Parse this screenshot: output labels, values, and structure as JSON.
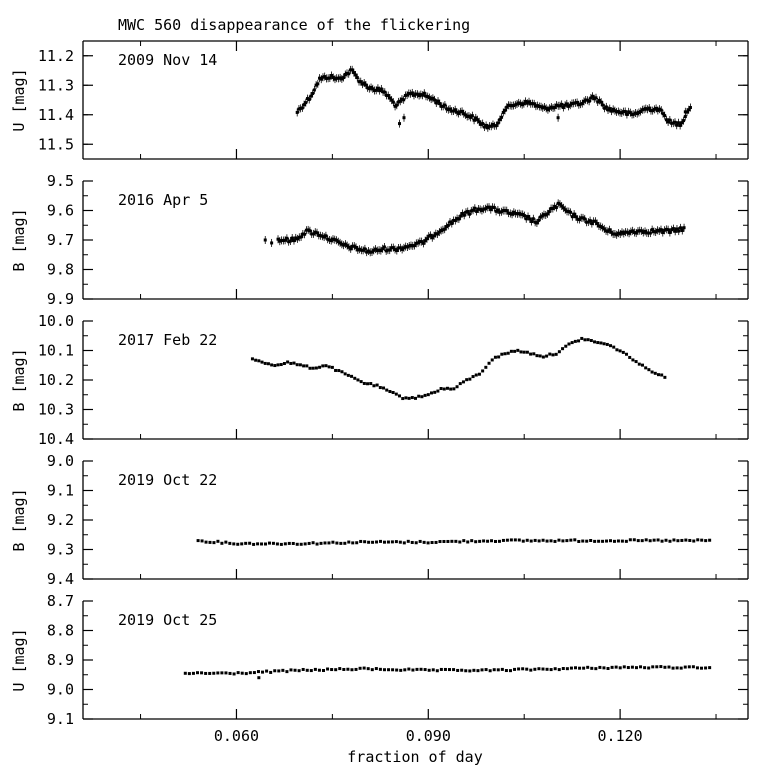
{
  "chart_data": {
    "type": "scatter",
    "title": "MWC 560   disappearance of the flickering",
    "xlabel": "fraction of day",
    "xlim": [
      0.036,
      0.14
    ],
    "x_ticks": [
      0.06,
      0.09,
      0.12
    ],
    "x_tick_labels": [
      "0.060",
      "0.090",
      "0.120"
    ],
    "y_inverted": true,
    "panels": [
      {
        "label": "2009 Nov 14",
        "ylabel": "U [mag]",
        "ylim": [
          11.15,
          11.55
        ],
        "y_ticks": [
          11.5,
          11.4,
          11.3,
          11.2
        ],
        "y_tick_labels": [
          "11.5",
          "11.4",
          "11.3",
          "11.2"
        ],
        "error_bars": true,
        "anchors": [
          [
            0.0695,
            11.39
          ],
          [
            0.0715,
            11.34
          ],
          [
            0.073,
            11.28
          ],
          [
            0.0745,
            11.27
          ],
          [
            0.076,
            11.28
          ],
          [
            0.078,
            11.25
          ],
          [
            0.0795,
            11.29
          ],
          [
            0.081,
            11.31
          ],
          [
            0.083,
            11.32
          ],
          [
            0.085,
            11.37
          ],
          [
            0.087,
            11.33
          ],
          [
            0.089,
            11.33
          ],
          [
            0.091,
            11.35
          ],
          [
            0.093,
            11.38
          ],
          [
            0.095,
            11.39
          ],
          [
            0.097,
            11.41
          ],
          [
            0.099,
            11.44
          ],
          [
            0.1005,
            11.44
          ],
          [
            0.102,
            11.38
          ],
          [
            0.104,
            11.36
          ],
          [
            0.106,
            11.36
          ],
          [
            0.108,
            11.38
          ],
          [
            0.11,
            11.37
          ],
          [
            0.112,
            11.37
          ],
          [
            0.114,
            11.36
          ],
          [
            0.116,
            11.34
          ],
          [
            0.118,
            11.38
          ],
          [
            0.12,
            11.39
          ],
          [
            0.122,
            11.4
          ],
          [
            0.124,
            11.38
          ],
          [
            0.126,
            11.38
          ],
          [
            0.128,
            11.43
          ],
          [
            0.1295,
            11.43
          ],
          [
            0.131,
            11.37
          ]
        ],
        "outliers": [
          [
            0.0855,
            11.43
          ],
          [
            0.0862,
            11.41
          ],
          [
            0.1103,
            11.41
          ],
          [
            0.1302,
            11.39
          ]
        ]
      },
      {
        "label": "2016 Apr 5",
        "ylabel": "B [mag]",
        "ylim": [
          9.5,
          9.9
        ],
        "y_ticks": [
          9.5,
          9.6,
          9.7,
          9.8,
          9.9
        ],
        "y_tick_labels": [
          "9.5",
          "9.6",
          "9.7",
          "9.8",
          "9.9"
        ],
        "error_bars": true,
        "anchors": [
          [
            0.0665,
            9.7
          ],
          [
            0.069,
            9.7
          ],
          [
            0.071,
            9.67
          ],
          [
            0.073,
            9.68
          ],
          [
            0.075,
            9.7
          ],
          [
            0.077,
            9.72
          ],
          [
            0.079,
            9.73
          ],
          [
            0.081,
            9.74
          ],
          [
            0.083,
            9.73
          ],
          [
            0.085,
            9.73
          ],
          [
            0.087,
            9.72
          ],
          [
            0.089,
            9.71
          ],
          [
            0.091,
            9.68
          ],
          [
            0.093,
            9.65
          ],
          [
            0.095,
            9.62
          ],
          [
            0.097,
            9.6
          ],
          [
            0.099,
            9.59
          ],
          [
            0.101,
            9.6
          ],
          [
            0.103,
            9.61
          ],
          [
            0.105,
            9.62
          ],
          [
            0.107,
            9.64
          ],
          [
            0.109,
            9.6
          ],
          [
            0.1105,
            9.58
          ],
          [
            0.112,
            9.61
          ],
          [
            0.114,
            9.63
          ],
          [
            0.116,
            9.64
          ],
          [
            0.118,
            9.67
          ],
          [
            0.12,
            9.68
          ],
          [
            0.122,
            9.67
          ],
          [
            0.124,
            9.67
          ],
          [
            0.126,
            9.67
          ],
          [
            0.128,
            9.67
          ],
          [
            0.13,
            9.66
          ]
        ],
        "outliers": [
          [
            0.0645,
            9.7
          ],
          [
            0.0655,
            9.71
          ]
        ]
      },
      {
        "label": "2017 Feb 22",
        "ylabel": "B [mag]",
        "ylim": [
          10.0,
          10.4
        ],
        "y_ticks": [
          10.0,
          10.1,
          10.2,
          10.3,
          10.4
        ],
        "y_tick_labels": [
          "10.0",
          "10.1",
          "10.2",
          "10.3",
          "10.4"
        ],
        "error_bars": false,
        "anchors": [
          [
            0.0625,
            10.13
          ],
          [
            0.064,
            10.14
          ],
          [
            0.066,
            10.15
          ],
          [
            0.068,
            10.14
          ],
          [
            0.07,
            10.15
          ],
          [
            0.072,
            10.16
          ],
          [
            0.074,
            10.15
          ],
          [
            0.076,
            10.17
          ],
          [
            0.078,
            10.19
          ],
          [
            0.08,
            10.21
          ],
          [
            0.082,
            10.22
          ],
          [
            0.084,
            10.24
          ],
          [
            0.086,
            10.26
          ],
          [
            0.088,
            10.26
          ],
          [
            0.09,
            10.25
          ],
          [
            0.092,
            10.23
          ],
          [
            0.094,
            10.23
          ],
          [
            0.096,
            10.2
          ],
          [
            0.098,
            10.18
          ],
          [
            0.1,
            10.13
          ],
          [
            0.102,
            10.11
          ],
          [
            0.104,
            10.1
          ],
          [
            0.106,
            10.11
          ],
          [
            0.108,
            10.12
          ],
          [
            0.11,
            10.11
          ],
          [
            0.112,
            10.08
          ],
          [
            0.114,
            10.06
          ],
          [
            0.116,
            10.07
          ],
          [
            0.118,
            10.08
          ],
          [
            0.12,
            10.1
          ],
          [
            0.122,
            10.13
          ],
          [
            0.124,
            10.16
          ],
          [
            0.126,
            10.18
          ],
          [
            0.127,
            10.19
          ]
        ],
        "outliers": []
      },
      {
        "label": "2019 Oct 22",
        "ylabel": "B [mag]",
        "ylim": [
          9.0,
          9.4
        ],
        "y_ticks": [
          9.0,
          9.1,
          9.2,
          9.3,
          9.4
        ],
        "y_tick_labels": [
          "9.0",
          "9.1",
          "9.2",
          "9.3",
          "9.4"
        ],
        "error_bars": false,
        "anchors": [
          [
            0.054,
            9.27
          ],
          [
            0.06,
            9.28
          ],
          [
            0.07,
            9.28
          ],
          [
            0.08,
            9.275
          ],
          [
            0.09,
            9.275
          ],
          [
            0.1,
            9.27
          ],
          [
            0.11,
            9.27
          ],
          [
            0.12,
            9.27
          ],
          [
            0.134,
            9.27
          ]
        ],
        "outliers": []
      },
      {
        "label": "2019 Oct 25",
        "ylabel": "U [mag]",
        "ylim": [
          8.7,
          9.1
        ],
        "y_ticks": [
          8.7,
          8.8,
          8.9,
          9.0,
          9.1
        ],
        "y_tick_labels": [
          "8.7",
          "8.8",
          "8.9",
          "9.0",
          "9.1"
        ],
        "error_bars": false,
        "anchors": [
          [
            0.052,
            8.945
          ],
          [
            0.06,
            8.945
          ],
          [
            0.07,
            8.935
          ],
          [
            0.08,
            8.93
          ],
          [
            0.09,
            8.935
          ],
          [
            0.1,
            8.935
          ],
          [
            0.11,
            8.93
          ],
          [
            0.12,
            8.925
          ],
          [
            0.134,
            8.925
          ]
        ],
        "outliers": [
          [
            0.0635,
            8.96
          ]
        ]
      }
    ]
  }
}
